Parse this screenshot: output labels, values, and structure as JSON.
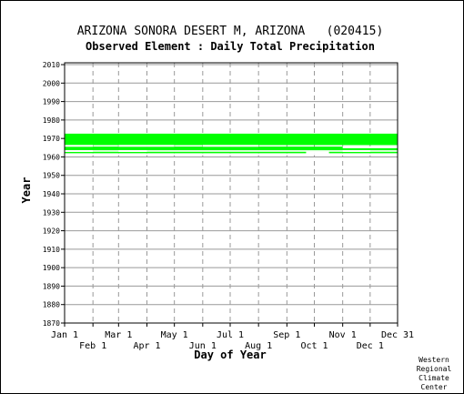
{
  "chart_data": {
    "type": "heatmap",
    "title": "ARIZONA SONORA DESERT M, ARIZONA   (020415)",
    "subtitle": "Observed Element : Daily Total Precipitation",
    "xlabel": "Day of Year",
    "ylabel": "Year",
    "xlim": [
      1,
      365
    ],
    "ylim": [
      1870,
      2011
    ],
    "y_ticks": [
      1870,
      1880,
      1890,
      1900,
      1910,
      1920,
      1930,
      1940,
      1950,
      1960,
      1970,
      1980,
      1990,
      2000,
      2010
    ],
    "x_ticks": [
      {
        "label": "Jan 1",
        "day": 1,
        "row": 1
      },
      {
        "label": "Feb 1",
        "day": 32,
        "row": 2
      },
      {
        "label": "Mar 1",
        "day": 60,
        "row": 1
      },
      {
        "label": "Apr 1",
        "day": 91,
        "row": 2
      },
      {
        "label": "May 1",
        "day": 121,
        "row": 1
      },
      {
        "label": "Jun 1",
        "day": 152,
        "row": 2
      },
      {
        "label": "Jul 1",
        "day": 182,
        "row": 1
      },
      {
        "label": "Aug 1",
        "day": 213,
        "row": 2
      },
      {
        "label": "Sep 1",
        "day": 244,
        "row": 1
      },
      {
        "label": "Oct 1",
        "day": 274,
        "row": 2
      },
      {
        "label": "Nov 1",
        "day": 305,
        "row": 1
      },
      {
        "label": "Dec 1",
        "day": 335,
        "row": 2
      },
      {
        "label": "Dec 31",
        "day": 365,
        "row": 1
      }
    ],
    "grid": true,
    "data_color": "#00ff00",
    "coverage_bands": [
      {
        "start_year": 1962,
        "end_year": 1962.8,
        "start_day": 1,
        "end_day": 365
      },
      {
        "start_year": 1963.6,
        "end_year": 1965.6,
        "start_day": 1,
        "end_day": 365
      },
      {
        "start_year": 1966.4,
        "end_year": 1972.6,
        "start_day": 1,
        "end_day": 365
      }
    ],
    "coverage_gaps": [
      {
        "year": 1961.4,
        "start_day": 1,
        "end_day": 365
      },
      {
        "year": 1962.4,
        "start_day": 265,
        "end_day": 290
      },
      {
        "year": 1963.2,
        "start_day": 1,
        "end_day": 32
      },
      {
        "year": 1963.2,
        "start_day": 60,
        "end_day": 91
      },
      {
        "year": 1963.2,
        "start_day": 305,
        "end_day": 335
      },
      {
        "year": 1965.2,
        "start_day": 305,
        "end_day": 365
      },
      {
        "year": 1966.0,
        "start_day": 1,
        "end_day": 32
      },
      {
        "year": 1966.0,
        "start_day": 60,
        "end_day": 121
      },
      {
        "year": 1966.0,
        "start_day": 152,
        "end_day": 213
      }
    ]
  },
  "credit": {
    "line1": "Western",
    "line2": "Regional",
    "line3": "Climate",
    "line4": "Center"
  }
}
